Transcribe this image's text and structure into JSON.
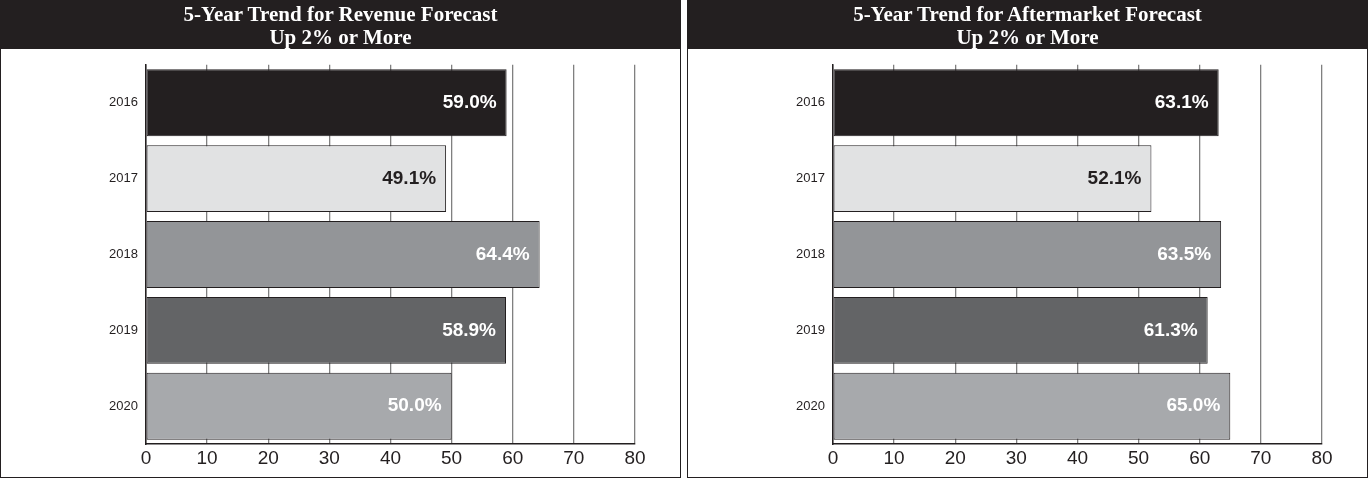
{
  "chart_data": [
    {
      "type": "bar",
      "orientation": "horizontal",
      "title": "5-Year Trend for Revenue Forecast\nUp 2% or More",
      "categories": [
        "2016",
        "2017",
        "2018",
        "2019",
        "2020"
      ],
      "values": [
        59.0,
        49.1,
        64.4,
        58.9,
        50.0
      ],
      "colors": [
        "#231f20",
        "#e1e2e3",
        "#939598",
        "#636466",
        "#a7a9ac"
      ],
      "value_labels": [
        "59.0%",
        "49.1%",
        "64.4%",
        "58.9%",
        "50.0%"
      ],
      "xlim": [
        0,
        80
      ],
      "xticks": [
        0,
        10,
        20,
        30,
        40,
        50,
        60,
        70,
        80
      ],
      "grid": "x",
      "legend": false
    },
    {
      "type": "bar",
      "orientation": "horizontal",
      "title": "5-Year Trend for Aftermarket Forecast\nUp 2% or More",
      "categories": [
        "2016",
        "2017",
        "2018",
        "2019",
        "2020"
      ],
      "values": [
        63.1,
        52.1,
        63.5,
        61.3,
        65.0
      ],
      "colors": [
        "#231f20",
        "#e1e2e3",
        "#939598",
        "#636466",
        "#a7a9ac"
      ],
      "value_labels": [
        "63.1%",
        "52.1%",
        "63.5%",
        "61.3%",
        "65.0%"
      ],
      "xlim": [
        0,
        80
      ],
      "xticks": [
        0,
        10,
        20,
        30,
        40,
        50,
        60,
        70,
        80
      ],
      "grid": "x",
      "legend": false
    }
  ]
}
